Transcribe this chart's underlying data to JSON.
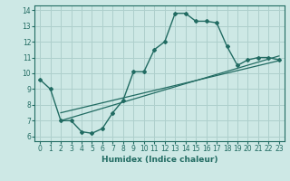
{
  "xlabel": "Humidex (Indice chaleur)",
  "xlim": [
    -0.5,
    23.5
  ],
  "ylim": [
    5.7,
    14.3
  ],
  "xticks": [
    0,
    1,
    2,
    3,
    4,
    5,
    6,
    7,
    8,
    9,
    10,
    11,
    12,
    13,
    14,
    15,
    16,
    17,
    18,
    19,
    20,
    21,
    22,
    23
  ],
  "yticks": [
    6,
    7,
    8,
    9,
    10,
    11,
    12,
    13,
    14
  ],
  "bg_color": "#cde8e5",
  "grid_color": "#aecfcc",
  "line_color": "#216b62",
  "curve1_x": [
    0,
    1,
    2,
    3,
    4,
    5,
    6,
    7,
    8,
    9,
    10,
    11,
    12,
    13,
    14,
    15,
    16,
    17,
    18,
    19,
    20,
    21,
    22,
    23
  ],
  "curve1_y": [
    9.6,
    9.0,
    7.0,
    7.0,
    6.3,
    6.2,
    6.5,
    7.5,
    8.3,
    10.1,
    10.1,
    11.5,
    12.0,
    13.8,
    13.8,
    13.3,
    13.3,
    13.2,
    11.7,
    10.5,
    10.85,
    11.0,
    11.0,
    10.85
  ],
  "line2_x": [
    2,
    23
  ],
  "line2_y": [
    7.0,
    11.1
  ],
  "line3_x": [
    2,
    23
  ],
  "line3_y": [
    7.5,
    10.8
  ]
}
